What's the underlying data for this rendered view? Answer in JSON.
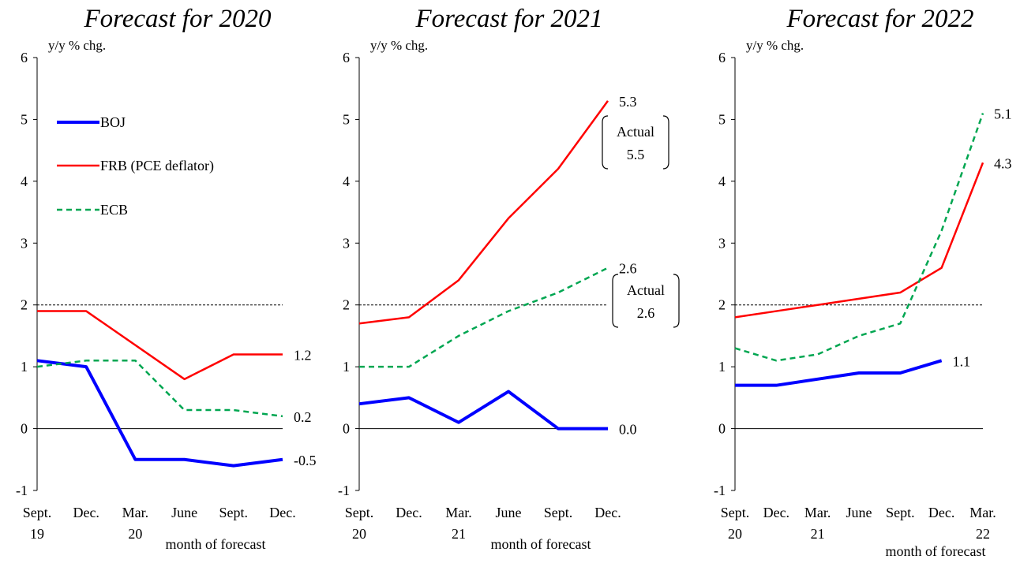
{
  "legend": [
    {
      "label": "BOJ",
      "color": "#0000ff",
      "style": "solid",
      "width": 4
    },
    {
      "label": "FRB (PCE deflator)",
      "color": "#ff0000",
      "style": "solid",
      "width": 2.5
    },
    {
      "label": "ECB",
      "color": "#00a651",
      "style": "dashed",
      "width": 2.5
    }
  ],
  "chart_data": [
    {
      "type": "line",
      "title": "Forecast for 2020",
      "ylabel": "y/y % chg.",
      "xlabel": "month of forecast",
      "ylim": [
        -1,
        6
      ],
      "yticks": [
        -1,
        0,
        1,
        2,
        3,
        4,
        5,
        6
      ],
      "reference_line": 2,
      "categories": [
        {
          "line1": "Sept.",
          "line2": "19"
        },
        {
          "line1": "Dec.",
          "line2": ""
        },
        {
          "line1": "Mar.",
          "line2": "20"
        },
        {
          "line1": "June",
          "line2": ""
        },
        {
          "line1": "Sept.",
          "line2": ""
        },
        {
          "line1": "Dec.",
          "line2": ""
        }
      ],
      "series": [
        {
          "name": "BOJ",
          "values": [
            1.1,
            1.0,
            -0.5,
            -0.5,
            -0.6,
            -0.5
          ],
          "end_label": "-0.5"
        },
        {
          "name": "FRB (PCE deflator)",
          "values": [
            1.9,
            1.9,
            null,
            0.8,
            1.2,
            1.2
          ],
          "end_label": "1.2"
        },
        {
          "name": "ECB",
          "values": [
            1.0,
            1.1,
            1.1,
            0.3,
            0.3,
            0.2
          ],
          "end_label": "0.2"
        }
      ],
      "annotations": []
    },
    {
      "type": "line",
      "title": "Forecast for 2021",
      "ylabel": "y/y % chg.",
      "xlabel": "month of forecast",
      "ylim": [
        -1,
        6
      ],
      "yticks": [
        -1,
        0,
        1,
        2,
        3,
        4,
        5,
        6
      ],
      "reference_line": 2,
      "categories": [
        {
          "line1": "Sept.",
          "line2": "20"
        },
        {
          "line1": "Dec.",
          "line2": ""
        },
        {
          "line1": "Mar.",
          "line2": "21"
        },
        {
          "line1": "June",
          "line2": ""
        },
        {
          "line1": "Sept.",
          "line2": ""
        },
        {
          "line1": "Dec.",
          "line2": ""
        }
      ],
      "series": [
        {
          "name": "BOJ",
          "values": [
            0.4,
            0.5,
            0.1,
            0.6,
            0.0,
            0.0
          ],
          "end_label": "0.0"
        },
        {
          "name": "FRB (PCE deflator)",
          "values": [
            1.7,
            1.8,
            2.4,
            3.4,
            4.2,
            5.3
          ],
          "end_label": "5.3"
        },
        {
          "name": "ECB",
          "values": [
            1.0,
            1.0,
            1.5,
            1.9,
            2.2,
            2.6
          ],
          "end_label": "2.6"
        }
      ],
      "annotations": [
        {
          "line1": "Actual",
          "line2": "5.5",
          "near_series": "FRB (PCE deflator)"
        },
        {
          "line1": "Actual",
          "line2": "2.6",
          "near_series": "ECB"
        }
      ]
    },
    {
      "type": "line",
      "title": "Forecast for 2022",
      "ylabel": "y/y % chg.",
      "xlabel": "month of forecast",
      "ylim": [
        -1,
        6
      ],
      "yticks": [
        -1,
        0,
        1,
        2,
        3,
        4,
        5,
        6
      ],
      "reference_line": 2,
      "categories": [
        {
          "line1": "Sept.",
          "line2": "20"
        },
        {
          "line1": "Dec.",
          "line2": ""
        },
        {
          "line1": "Mar.",
          "line2": "21"
        },
        {
          "line1": "June",
          "line2": ""
        },
        {
          "line1": "Sept.",
          "line2": ""
        },
        {
          "line1": "Dec.",
          "line2": ""
        },
        {
          "line1": "Mar.",
          "line2": "22"
        }
      ],
      "series": [
        {
          "name": "BOJ",
          "values": [
            0.7,
            0.7,
            0.8,
            0.9,
            0.9,
            1.1,
            null
          ],
          "end_label": "1.1"
        },
        {
          "name": "FRB (PCE deflator)",
          "values": [
            1.8,
            1.9,
            2.0,
            2.1,
            2.2,
            2.6,
            4.3
          ],
          "end_label": "4.3"
        },
        {
          "name": "ECB",
          "values": [
            1.3,
            1.1,
            1.2,
            1.5,
            1.7,
            3.2,
            5.1
          ],
          "end_label": "5.1"
        }
      ],
      "annotations": []
    }
  ]
}
